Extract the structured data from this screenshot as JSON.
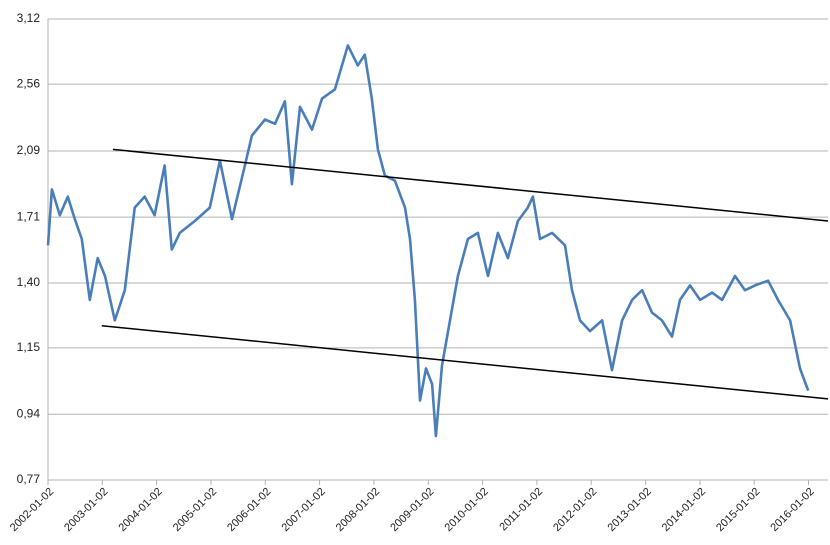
{
  "chart_data": {
    "type": "line",
    "log_y": true,
    "grid": true,
    "xlim": [
      "2002-01-02",
      "2016-05-12"
    ],
    "xticks": [
      "2002-01-02",
      "2003-01-02",
      "2004-01-02",
      "2005-01-02",
      "2006-01-02",
      "2007-01-02",
      "2008-01-02",
      "2009-01-02",
      "2010-01-02",
      "2011-01-02",
      "2012-01-02",
      "2013-01-02",
      "2014-01-02",
      "2015-01-02",
      "2016-01-02"
    ],
    "ylim": [
      0.77,
      3.12
    ],
    "yticks": [
      {
        "value": 0.77,
        "label": "0,77"
      },
      {
        "value": 0.94,
        "label": "0,94"
      },
      {
        "value": 1.15,
        "label": "1,15"
      },
      {
        "value": 1.4,
        "label": "1,40"
      },
      {
        "value": 1.71,
        "label": "1,71"
      },
      {
        "value": 2.09,
        "label": "2,09"
      },
      {
        "value": 2.56,
        "label": "2,56"
      },
      {
        "value": 3.12,
        "label": "3,12"
      }
    ],
    "series": [
      {
        "color": "#4a7ebb",
        "x": [
          "2002-01-02",
          "2002-01-28",
          "2002-03-22",
          "2002-05-15",
          "2002-07-01",
          "2002-08-17",
          "2002-10-10",
          "2002-12-02",
          "2003-01-20",
          "2003-03-27",
          "2003-06-02",
          "2003-08-08",
          "2003-10-14",
          "2003-12-20",
          "2004-02-25",
          "2004-04-13",
          "2004-06-06",
          "2004-09-15",
          "2004-12-25",
          "2005-03-03",
          "2005-05-23",
          "2005-08-18",
          "2005-10-04",
          "2005-12-31",
          "2006-03-08",
          "2006-05-14",
          "2006-06-30",
          "2006-08-23",
          "2006-11-12",
          "2007-01-18",
          "2007-04-15",
          "2007-07-11",
          "2007-09-16",
          "2007-11-02",
          "2007-12-19",
          "2008-01-29",
          "2008-03-16",
          "2008-05-22",
          "2008-07-29",
          "2008-09-01",
          "2008-10-04",
          "2008-11-07",
          "2008-12-17",
          "2009-01-27",
          "2009-02-22",
          "2009-04-04",
          "2009-05-28",
          "2009-07-20",
          "2009-09-25",
          "2009-12-01",
          "2010-02-07",
          "2010-04-15",
          "2010-06-21",
          "2010-08-27",
          "2010-11-02",
          "2010-12-06",
          "2011-01-23",
          "2011-04-14",
          "2011-07-10",
          "2011-08-26",
          "2011-10-19",
          "2011-12-25",
          "2012-03-15",
          "2012-05-21",
          "2012-07-28",
          "2012-10-03",
          "2012-12-09",
          "2013-02-14",
          "2013-04-22",
          "2013-06-28",
          "2013-08-21",
          "2013-10-27",
          "2014-01-03",
          "2014-03-25",
          "2014-05-31",
          "2014-08-26",
          "2014-11-01",
          "2015-01-08",
          "2015-04-05",
          "2015-06-11",
          "2015-08-31",
          "2015-11-06",
          "2015-12-31"
        ],
        "values": [
          1.57,
          1.86,
          1.72,
          1.82,
          1.7,
          1.6,
          1.33,
          1.51,
          1.43,
          1.25,
          1.37,
          1.76,
          1.82,
          1.72,
          2.0,
          1.55,
          1.63,
          1.69,
          1.76,
          2.03,
          1.7,
          2.0,
          2.19,
          2.3,
          2.27,
          2.43,
          1.89,
          2.39,
          2.23,
          2.45,
          2.52,
          2.88,
          2.71,
          2.8,
          2.45,
          2.1,
          1.94,
          1.91,
          1.76,
          1.6,
          1.33,
          0.98,
          1.08,
          1.03,
          0.88,
          1.09,
          1.25,
          1.43,
          1.6,
          1.63,
          1.43,
          1.63,
          1.51,
          1.69,
          1.76,
          1.82,
          1.6,
          1.63,
          1.57,
          1.37,
          1.25,
          1.21,
          1.25,
          1.075,
          1.25,
          1.33,
          1.37,
          1.28,
          1.25,
          1.19,
          1.33,
          1.39,
          1.33,
          1.36,
          1.33,
          1.43,
          1.37,
          1.39,
          1.41,
          1.33,
          1.25,
          1.08,
          1.01
        ]
      }
    ],
    "trend_lines": [
      {
        "color": "#000000",
        "x": [
          "2003-03-14",
          "2016-05-12"
        ],
        "values": [
          2.1,
          1.69
        ]
      },
      {
        "color": "#000000",
        "x": [
          "2002-12-30",
          "2016-05-12"
        ],
        "values": [
          1.23,
          0.985
        ]
      }
    ]
  }
}
